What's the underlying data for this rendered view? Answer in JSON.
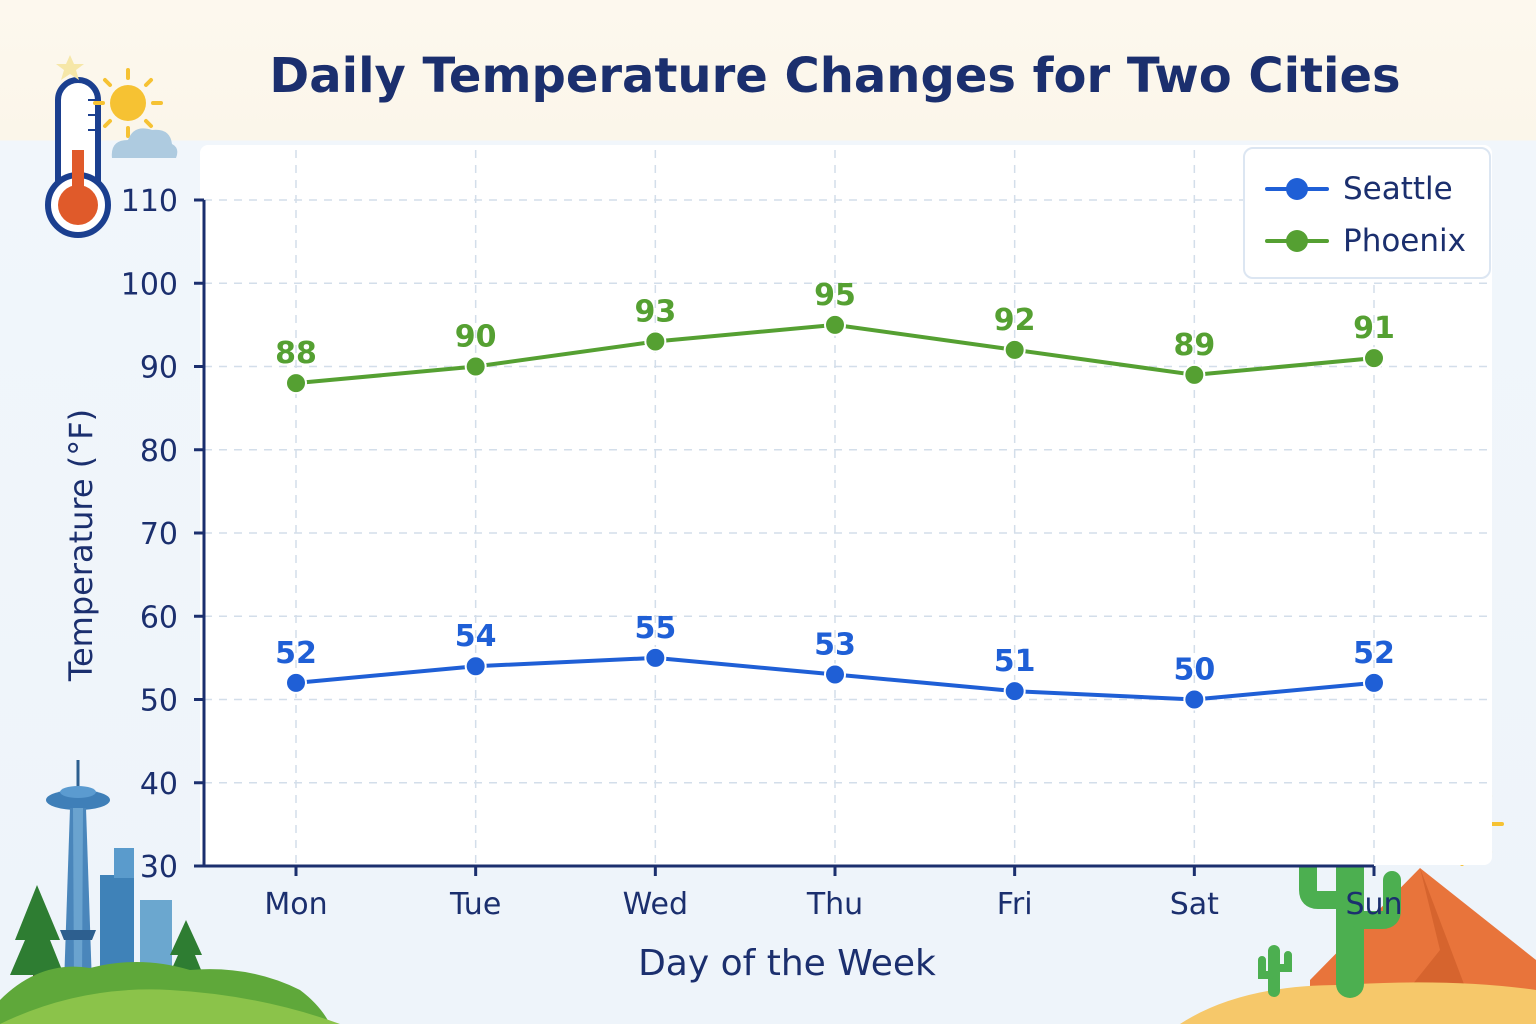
{
  "chart_data": {
    "type": "line",
    "title": "Daily Temperature Changes for Two Cities",
    "xlabel": "Day of the Week",
    "ylabel": "Temperature (°F)",
    "categories": [
      "Mon",
      "Tue",
      "Wed",
      "Thu",
      "Fri",
      "Sat",
      "Sun"
    ],
    "ylim": [
      30,
      110
    ],
    "yticks": [
      30,
      40,
      50,
      60,
      70,
      80,
      90,
      100,
      110
    ],
    "grid": true,
    "legend_position": "top-right",
    "series": [
      {
        "name": "Seattle",
        "color": "#1f5fd6",
        "values": [
          52,
          54,
          55,
          53,
          51,
          50,
          52
        ]
      },
      {
        "name": "Phoenix",
        "color": "#55a032",
        "values": [
          88,
          90,
          93,
          95,
          92,
          89,
          91
        ]
      }
    ]
  },
  "decorations": [
    "thermometer-icon",
    "sun-cloud-icon",
    "space-needle-skyline-icon",
    "evergreen-tree-icon",
    "cactus-icon",
    "desert-mountain-icon",
    "sun-icon"
  ]
}
